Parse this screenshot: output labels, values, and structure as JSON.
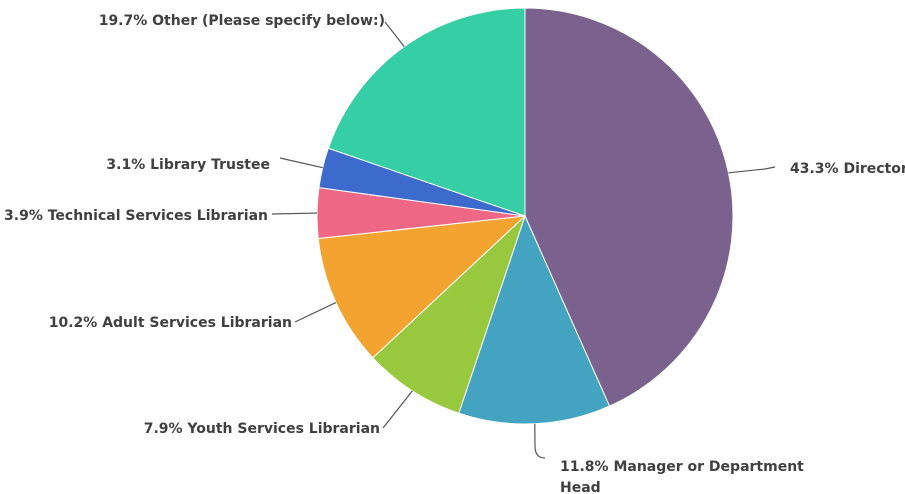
{
  "chart_data": {
    "type": "pie",
    "title": "",
    "unit": "%",
    "slices": [
      {
        "label": "Director",
        "value": 43.3,
        "color": "#7b618e",
        "display": "43.3% Director"
      },
      {
        "label": "Manager or Department Head",
        "value": 11.8,
        "color": "#44a3c1",
        "display": "11.8% Manager or Department Head"
      },
      {
        "label": "Youth Services Librarian",
        "value": 7.9,
        "color": "#98c83e",
        "display": "7.9% Youth Services Librarian"
      },
      {
        "label": "Adult Services Librarian",
        "value": 10.2,
        "color": "#f3a430",
        "display": "10.2% Adult Services Librarian"
      },
      {
        "label": "Technical Services Librarian",
        "value": 3.9,
        "color": "#ee6886",
        "display": "3.9% Technical Services Librarian"
      },
      {
        "label": "Library Trustee",
        "value": 3.1,
        "color": "#3d6acd",
        "display": "3.1% Library Trustee"
      },
      {
        "label": "Other (Please specify below:)",
        "value": 19.7,
        "color": "#35cea5",
        "display": "19.7% Other (Please specify below:)"
      }
    ]
  }
}
